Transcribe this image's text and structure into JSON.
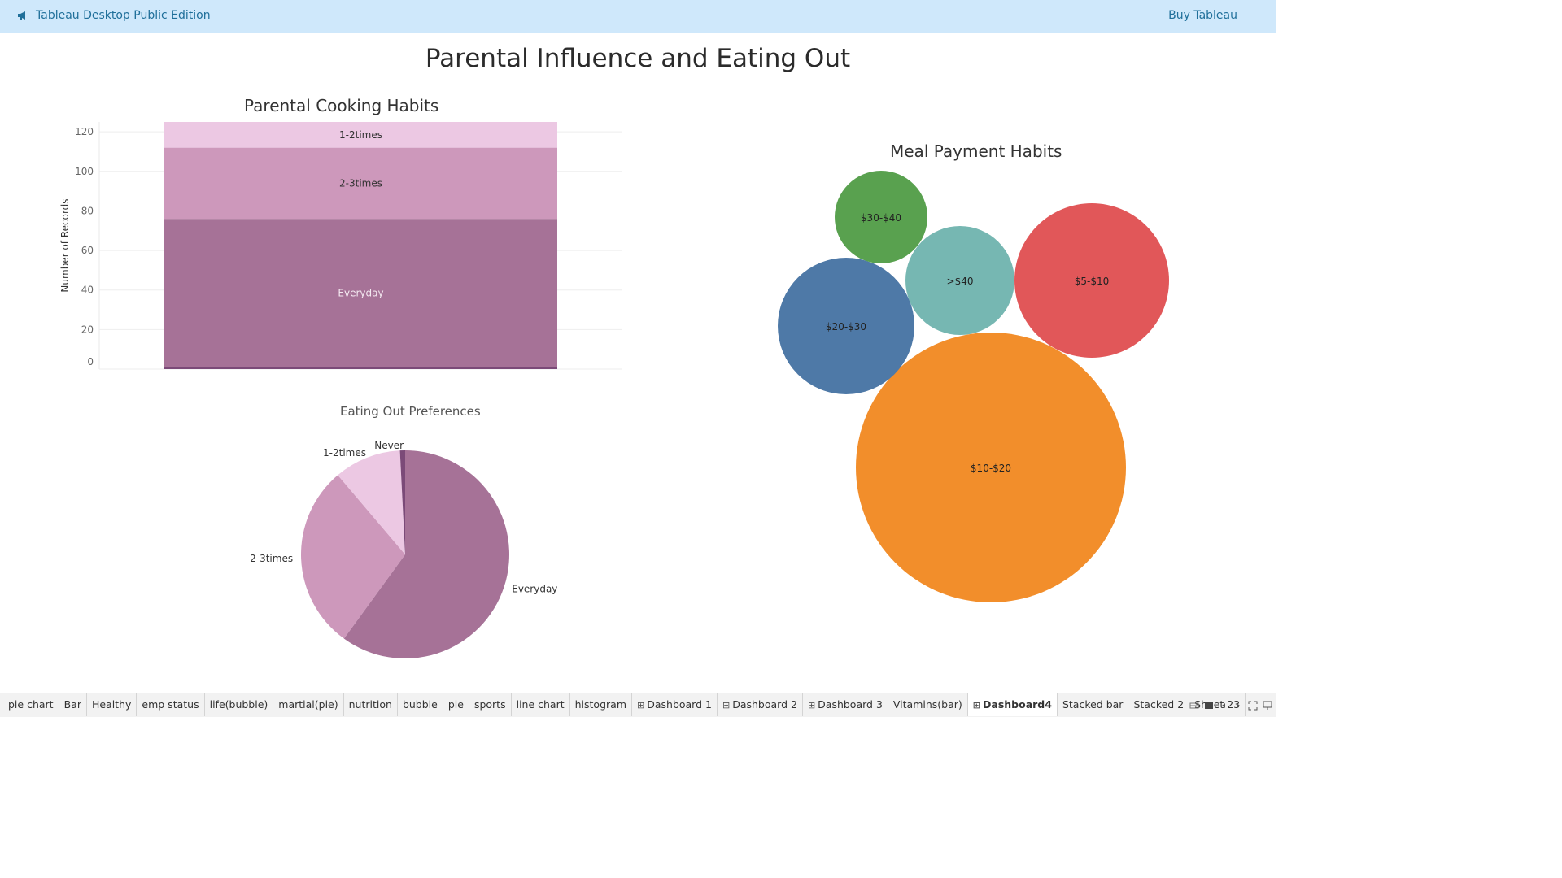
{
  "topbar": {
    "edition": "Tableau Desktop Public Edition",
    "buy": "Buy Tableau",
    "icon": "megaphone-icon",
    "background": "#cfe8fb",
    "text_color": "#1f6f9a"
  },
  "dashboard": {
    "title": "Parental Influence and Eating Out"
  },
  "chart_data": [
    {
      "type": "bar",
      "title": "Parental Cooking Habits",
      "xlabel": "",
      "ylabel": "Number of Records",
      "ylim": [
        0,
        125
      ],
      "yticks": [
        0,
        20,
        40,
        60,
        80,
        100,
        120
      ],
      "grid": true,
      "stacked": true,
      "categories": [
        ""
      ],
      "series": [
        {
          "name": "Never",
          "values": [
            1
          ],
          "color": "#7b4a78"
        },
        {
          "name": "Everyday",
          "values": [
            75
          ],
          "color": "#a67297"
        },
        {
          "name": "2-3times",
          "values": [
            36
          ],
          "color": "#cd98bb"
        },
        {
          "name": "1-2times",
          "values": [
            13
          ],
          "color": "#ecc8e3"
        }
      ],
      "labels": [
        "",
        "Everyday",
        "2-3times",
        "1-2times"
      ]
    },
    {
      "type": "pie",
      "title": "Eating Out Preferences",
      "slices": [
        {
          "label": "Everyday",
          "value": 75,
          "color": "#a67297"
        },
        {
          "label": "2-3times",
          "value": 36,
          "color": "#cd98bb"
        },
        {
          "label": "1-2times",
          "value": 13,
          "color": "#ecc8e3"
        },
        {
          "label": "Never",
          "value": 1,
          "color": "#7b4a78"
        }
      ]
    },
    {
      "type": "bubble",
      "title": "Meal Payment Habits",
      "bubbles": [
        {
          "label": "$10-$20",
          "value": 100,
          "color": "#f28e2b"
        },
        {
          "label": "$5-$10",
          "value": 33,
          "color": "#e15759"
        },
        {
          "label": "$20-$30",
          "value": 25,
          "color": "#4e79a7"
        },
        {
          "label": ">$40",
          "value": 16,
          "color": "#76b7b2"
        },
        {
          "label": "$30-$40",
          "value": 12,
          "color": "#59a14f"
        }
      ]
    }
  ],
  "tabs": [
    {
      "label": "pie chart",
      "dashboard": false,
      "active": false
    },
    {
      "label": "Bar",
      "dashboard": false,
      "active": false
    },
    {
      "label": "Healthy",
      "dashboard": false,
      "active": false
    },
    {
      "label": "emp status",
      "dashboard": false,
      "active": false
    },
    {
      "label": "life(bubble)",
      "dashboard": false,
      "active": false
    },
    {
      "label": "martial(pie)",
      "dashboard": false,
      "active": false
    },
    {
      "label": "nutrition",
      "dashboard": false,
      "active": false
    },
    {
      "label": "bubble",
      "dashboard": false,
      "active": false
    },
    {
      "label": "pie",
      "dashboard": false,
      "active": false
    },
    {
      "label": "sports",
      "dashboard": false,
      "active": false
    },
    {
      "label": "line chart",
      "dashboard": false,
      "active": false
    },
    {
      "label": "histogram",
      "dashboard": false,
      "active": false
    },
    {
      "label": "Dashboard 1",
      "dashboard": true,
      "active": false
    },
    {
      "label": "Dashboard 2",
      "dashboard": true,
      "active": false
    },
    {
      "label": "Dashboard 3",
      "dashboard": true,
      "active": false
    },
    {
      "label": "Vitamins(bar)",
      "dashboard": false,
      "active": false
    },
    {
      "label": "Dashboard4",
      "dashboard": true,
      "active": true
    },
    {
      "label": "Stacked bar",
      "dashboard": false,
      "active": false
    },
    {
      "label": "Stacked 2",
      "dashboard": false,
      "active": false
    },
    {
      "label": "Sheet 23",
      "dashboard": false,
      "active": false
    }
  ],
  "nav_controls": [
    {
      "name": "show-filmstrip-icon"
    },
    {
      "name": "show-tabs-icon"
    },
    {
      "name": "previous-sheet-icon"
    },
    {
      "name": "next-sheet-icon"
    },
    {
      "name": "fullscreen-icon"
    },
    {
      "name": "presentation-mode-icon"
    }
  ]
}
